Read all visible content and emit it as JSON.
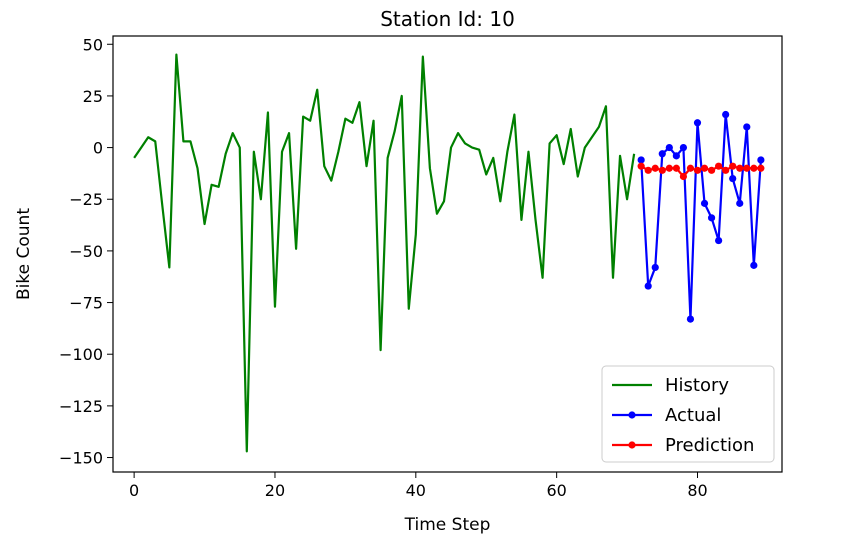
{
  "chart_data": {
    "type": "line",
    "title": "Station Id: 10",
    "xlabel": "Time Step",
    "ylabel": "Bike Count",
    "xlim": [
      -3,
      92
    ],
    "ylim": [
      -157,
      54
    ],
    "xticks": [
      0,
      20,
      40,
      60,
      80
    ],
    "yticks": [
      50,
      25,
      0,
      -25,
      -50,
      -75,
      -100,
      -125,
      -150
    ],
    "grid": false,
    "legend_position": "lower-right",
    "series": [
      {
        "name": "History",
        "color": "#008000",
        "marker": "none",
        "x": [
          0,
          1,
          2,
          3,
          4,
          5,
          6,
          7,
          8,
          9,
          10,
          11,
          12,
          13,
          14,
          15,
          16,
          17,
          18,
          19,
          20,
          21,
          22,
          23,
          24,
          25,
          26,
          27,
          28,
          29,
          30,
          31,
          32,
          33,
          34,
          35,
          36,
          37,
          38,
          39,
          40,
          41,
          42,
          43,
          44,
          45,
          46,
          47,
          48,
          49,
          50,
          51,
          52,
          53,
          54,
          55,
          56,
          57,
          58,
          59,
          60,
          61,
          62,
          63,
          64,
          65,
          66,
          67,
          68,
          69,
          70,
          71
        ],
        "y": [
          -5,
          0,
          5,
          3,
          -28,
          -58,
          45,
          3,
          3,
          -10,
          -37,
          -18,
          -19,
          -3,
          7,
          0,
          -147,
          -2,
          -25,
          17,
          -77,
          -2,
          7,
          -49,
          15,
          13,
          28,
          -9,
          -16,
          -2,
          14,
          12,
          22,
          -9,
          13,
          -98,
          -5,
          8,
          25,
          -78,
          -42,
          44,
          -10,
          -32,
          -26,
          0,
          7,
          2,
          0,
          -1,
          -13,
          -5,
          -26,
          -2,
          16,
          -35,
          -2,
          -35,
          -63,
          2,
          6,
          -8,
          9,
          -14,
          0,
          5,
          10,
          20,
          -63,
          -4,
          -25,
          -3
        ]
      },
      {
        "name": "Actual",
        "color": "#0000ff",
        "marker": "dot",
        "x": [
          72,
          73,
          74,
          75,
          76,
          77,
          78,
          79,
          80,
          81,
          82,
          83,
          84,
          85,
          86,
          87,
          88,
          89
        ],
        "y": [
          -6,
          -67,
          -58,
          -3,
          0,
          -4,
          0,
          -83,
          12,
          -27,
          -34,
          -45,
          16,
          -15,
          -27,
          10,
          -57,
          -6
        ]
      },
      {
        "name": "Prediction",
        "color": "#ff0000",
        "marker": "dot",
        "x": [
          72,
          73,
          74,
          75,
          76,
          77,
          78,
          79,
          80,
          81,
          82,
          83,
          84,
          85,
          86,
          87,
          88,
          89
        ],
        "y": [
          -9,
          -11,
          -10,
          -11,
          -10,
          -10,
          -14,
          -10,
          -11,
          -10,
          -11,
          -9,
          -11,
          -9,
          -10,
          -10,
          -10,
          -10
        ]
      }
    ]
  }
}
